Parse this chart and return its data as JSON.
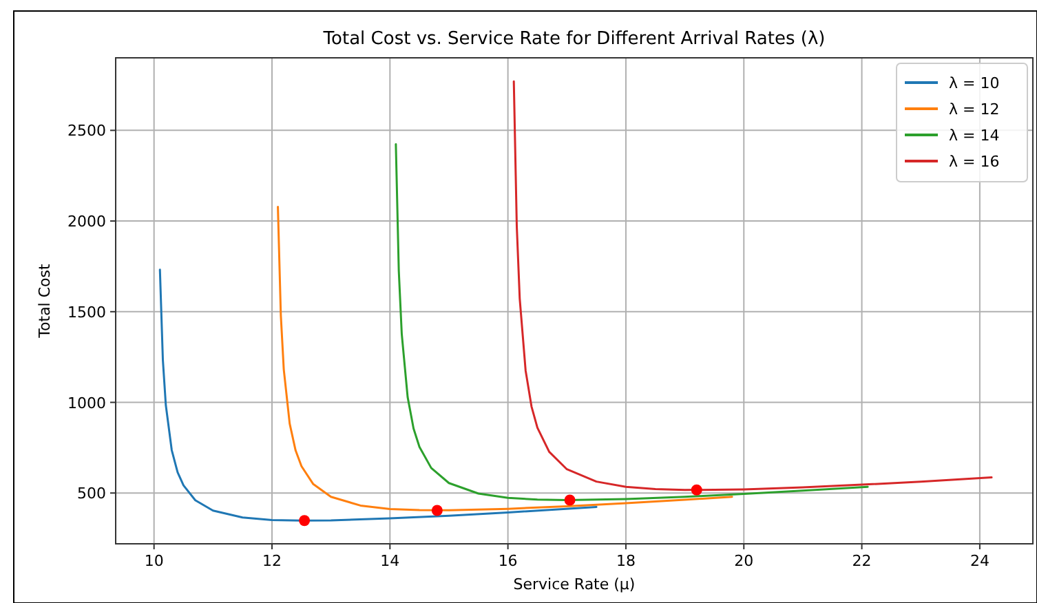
{
  "chart_data": {
    "type": "line",
    "title": "Total Cost vs. Service Rate for Different Arrival Rates (λ)",
    "xlabel": "Service Rate (μ)",
    "ylabel": "Total Cost",
    "xlim": [
      9.35,
      24.9
    ],
    "xticks": [
      10,
      12,
      14,
      16,
      18,
      20,
      22,
      24
    ],
    "ylim": [
      220,
      2900
    ],
    "yticks": [
      500,
      1000,
      1500,
      2000,
      2500
    ],
    "grid": true,
    "legend": "top right",
    "series": [
      {
        "name": "λ = 10",
        "color": "#1f77b4",
        "x": [
          10.1,
          10.15,
          10.2,
          10.3,
          10.4,
          10.5,
          10.7,
          11,
          11.5,
          12,
          12.5,
          13,
          14,
          15,
          16,
          17.5
        ],
        "values": [
          1732,
          1233,
          985,
          737,
          614,
          542,
          460,
          403,
          365,
          351,
          348,
          349,
          360,
          375,
          393,
          423
        ]
      },
      {
        "name": "λ = 12",
        "color": "#ff7f0e",
        "x": [
          12.1,
          12.15,
          12.2,
          12.3,
          12.4,
          12.5,
          12.7,
          13,
          13.5,
          14,
          14.5,
          15,
          16,
          17,
          18,
          19,
          19.8
        ],
        "values": [
          2078,
          1480,
          1181,
          883,
          735,
          648,
          549,
          479,
          431,
          412,
          406,
          405,
          413,
          427,
          444,
          463,
          479
        ]
      },
      {
        "name": "λ = 14",
        "color": "#2ca02c",
        "x": [
          14.1,
          14.15,
          14.2,
          14.3,
          14.4,
          14.5,
          14.7,
          15,
          15.5,
          16,
          16.5,
          17,
          18,
          19,
          20,
          21,
          22.1
        ],
        "values": [
          2424,
          1725,
          1377,
          1029,
          856,
          754,
          638,
          555,
          497,
          473,
          464,
          461,
          467,
          479,
          495,
          513,
          534
        ]
      },
      {
        "name": "λ = 16",
        "color": "#d62728",
        "x": [
          16.1,
          16.15,
          16.2,
          16.3,
          16.4,
          16.5,
          16.7,
          17,
          17.5,
          18,
          18.5,
          19,
          19.5,
          20,
          21,
          22,
          23,
          24.2
        ],
        "values": [
          2770,
          1972,
          1573,
          1175,
          977,
          860,
          727,
          631,
          563,
          534,
          522,
          517,
          518,
          520,
          531,
          546,
          563,
          586
        ]
      },
      {
        "type": "scatter",
        "color": "#ff0000",
        "x": [
          12.55,
          14.8,
          17.05,
          19.2
        ],
        "values": [
          348,
          404,
          461,
          517
        ]
      }
    ]
  }
}
